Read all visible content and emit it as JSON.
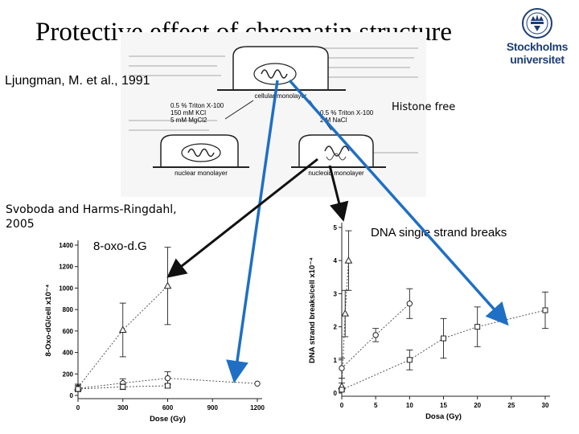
{
  "slide": {
    "title": "Protective effect of chromatin structure",
    "logo_line1": "Stockholms",
    "logo_line2": "universitet",
    "author": "Ljungman, M. et al., 1991",
    "histone_free": "Histone free",
    "svoboda_line1": "Svoboda and Harms-Ringdahl,",
    "svoboda_line2": "2005",
    "oxo_label": "8-oxo-d.G",
    "ssb_label": "DNA single strand breaks"
  },
  "diagram": {
    "cellular_label": "cellular monolayer",
    "nuclear_label": "nuclear monolayer",
    "nucleoid_label": "nucleoid monolayer",
    "left_conditions": [
      "0.5 % Triton X-100",
      "150 mM KCl",
      "5 mM MgCl2"
    ],
    "right_conditions": [
      "0.5 % Triton X-100",
      "2 M NaCl"
    ]
  },
  "colors": {
    "arrow_blue": "#1f6fc4",
    "arrow_black": "#111111",
    "logo_blue": "#1d3e73"
  },
  "chart_data": [
    {
      "type": "scatter",
      "ylabel": "8-Oxo-dG/cell x10⁻⁴",
      "xlabel": "Dose (Gy)",
      "xlim": [
        0,
        1200
      ],
      "ylim": [
        0,
        1400
      ],
      "xticks": [
        0,
        300,
        600,
        900,
        1200
      ],
      "yticks": [
        0,
        200,
        400,
        600,
        800,
        1000,
        1200,
        1400
      ],
      "series": [
        {
          "marker": "triangle",
          "x": [
            0,
            300,
            600
          ],
          "y": [
            75,
            610,
            1020
          ],
          "err": [
            30,
            250,
            360
          ]
        },
        {
          "marker": "circle",
          "x": [
            0,
            300,
            600,
            1200
          ],
          "y": [
            65,
            115,
            160,
            110
          ],
          "err": [
            30,
            40,
            60,
            0
          ]
        },
        {
          "marker": "square",
          "x": [
            0,
            300,
            600
          ],
          "y": [
            60,
            80,
            90
          ],
          "err": [
            20,
            25,
            20
          ]
        }
      ]
    },
    {
      "type": "scatter",
      "ylabel": "DNA strand breaks/cell x10⁻⁴",
      "xlabel": "Dosa (Gy)",
      "xlim": [
        0,
        30
      ],
      "ylim": [
        0,
        5
      ],
      "xticks": [
        0,
        5,
        10,
        15,
        20,
        25,
        30
      ],
      "yticks": [
        0,
        1,
        2,
        3,
        4,
        5
      ],
      "series": [
        {
          "marker": "triangle",
          "x": [
            0,
            0.5,
            1
          ],
          "y": [
            0.2,
            2.4,
            4.0
          ],
          "err": [
            0.1,
            0.7,
            0.9
          ]
        },
        {
          "marker": "circle",
          "x": [
            0,
            5,
            10
          ],
          "y": [
            0.75,
            1.75,
            2.7
          ],
          "err": [
            0.3,
            0.2,
            0.45
          ]
        },
        {
          "marker": "square",
          "x": [
            0,
            10,
            15,
            20,
            30
          ],
          "y": [
            0.1,
            1.0,
            1.65,
            2.0,
            2.5
          ],
          "err": [
            0.05,
            0.3,
            0.6,
            0.6,
            0.55
          ]
        }
      ]
    }
  ]
}
